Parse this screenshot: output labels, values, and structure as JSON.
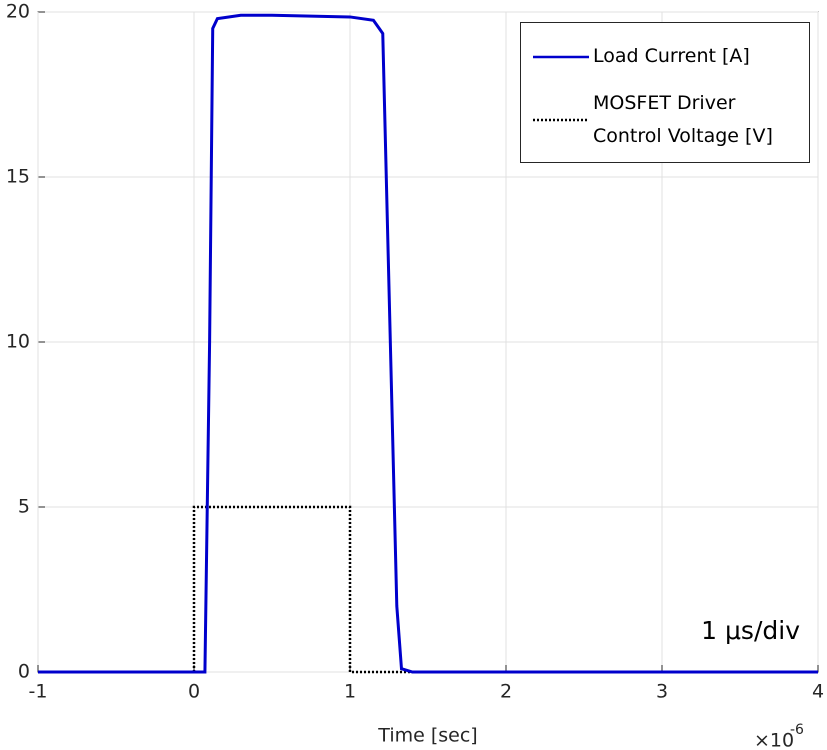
{
  "chart_data": {
    "type": "line",
    "xlabel": "Time [sec]",
    "x_multiplier": "×10",
    "x_multiplier_exponent": "-6",
    "annotation": "1 μs/div",
    "xlim": [
      -1,
      4
    ],
    "ylim": [
      0,
      20
    ],
    "xticks": [
      -1,
      0,
      1,
      2,
      3,
      4
    ],
    "yticks": [
      0,
      5,
      10,
      15,
      20
    ],
    "grid": true,
    "legend": "upper right",
    "series": [
      {
        "name": "Load Current [A]",
        "color": "#0000cc",
        "style": "solid",
        "x": [
          -1,
          0.07,
          0.1,
          0.12,
          0.15,
          0.3,
          0.5,
          1.0,
          1.15,
          1.21,
          1.3,
          1.33,
          1.4,
          4
        ],
        "values": [
          0,
          0,
          10,
          19.5,
          19.8,
          19.9,
          19.9,
          19.85,
          19.75,
          19.35,
          2,
          0.1,
          0,
          0
        ]
      },
      {
        "name": "MOSFET Driver Control Voltage [V]",
        "color": "#000000",
        "style": "dotted",
        "x": [
          -1,
          0,
          0,
          1,
          1,
          4
        ],
        "values": [
          0,
          0,
          5,
          5,
          0,
          0
        ]
      }
    ]
  }
}
